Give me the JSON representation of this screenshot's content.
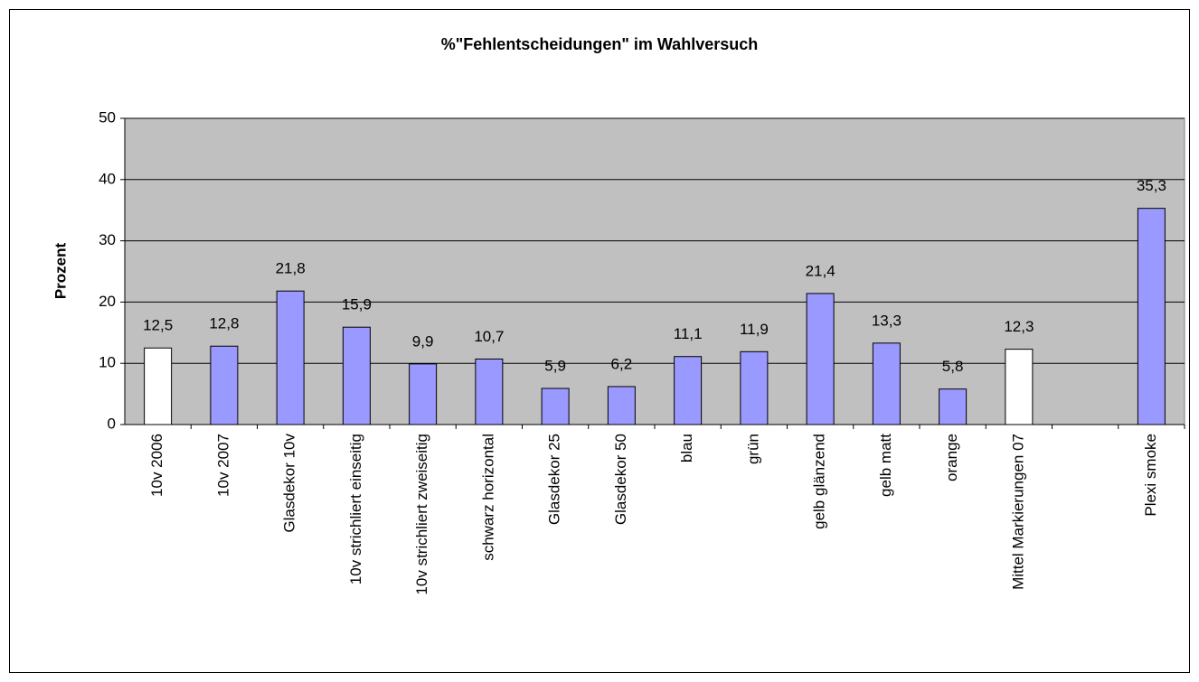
{
  "chart_data": {
    "type": "bar",
    "title": "%\"Fehlentscheidungen\" im Wahlversuch",
    "y_label": "Prozent",
    "categories": [
      "10v 2006",
      "10v 2007",
      "Glasdekor 10v",
      "10v strichliert einseitig",
      "10v strichliert zweiseitig",
      "schwarz horizontal",
      "Glasdekor 25",
      "Glasdekor 50",
      "blau",
      "grün",
      "gelb glänzend",
      "gelb matt",
      "orange",
      "Mittel Markierungen 07",
      null,
      "Plexi smoke"
    ],
    "values": [
      12.5,
      12.8,
      21.8,
      15.9,
      9.9,
      10.7,
      5.9,
      6.2,
      11.1,
      11.9,
      21.4,
      13.3,
      5.8,
      12.3,
      null,
      35.3
    ],
    "value_labels": [
      "12,5",
      "12,8",
      "21,8",
      "15,9",
      "9,9",
      "10,7",
      "5,9",
      "6,2",
      "11,1",
      "11,9",
      "21,4",
      "13,3",
      "5,8",
      "12,3",
      null,
      "35,3"
    ],
    "colors": [
      "#ffffff",
      "#9999ff",
      "#9999ff",
      "#9999ff",
      "#9999ff",
      "#9999ff",
      "#9999ff",
      "#9999ff",
      "#9999ff",
      "#9999ff",
      "#9999ff",
      "#9999ff",
      "#9999ff",
      "#ffffff",
      null,
      "#9999ff"
    ],
    "ylim": [
      0,
      50
    ],
    "yticks": [
      0,
      10,
      20,
      30,
      40,
      50
    ],
    "grid": true,
    "plot_background": "#c0c0c0"
  }
}
